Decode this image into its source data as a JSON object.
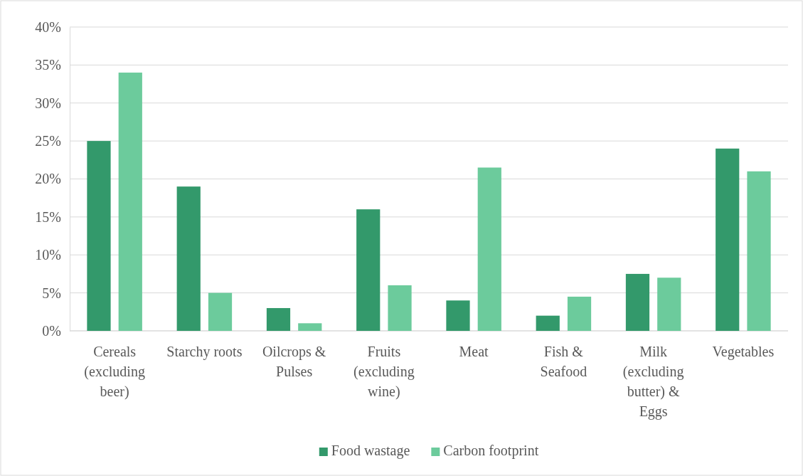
{
  "chart_data": {
    "type": "bar",
    "categories": [
      "Cereals (excluding beer)",
      "Starchy roots",
      "Oilcrops & Pulses",
      "Fruits (excluding wine)",
      "Meat",
      "Fish & Seafood",
      "Milk (excluding butter) & Eggs",
      "Vegetables"
    ],
    "series": [
      {
        "name": "Food wastage",
        "color": "#33996b",
        "values": [
          25,
          19,
          3,
          16,
          4,
          2,
          7.5,
          24
        ]
      },
      {
        "name": "Carbon footprint",
        "color": "#6ccb9c",
        "values": [
          34,
          5,
          1,
          6,
          21.5,
          4.5,
          7,
          21
        ]
      }
    ],
    "ylim": [
      0,
      40
    ],
    "yticks": [
      {
        "value": 0,
        "label": "0%"
      },
      {
        "value": 5,
        "label": "5%"
      },
      {
        "value": 10,
        "label": "10%"
      },
      {
        "value": 15,
        "label": "15%"
      },
      {
        "value": 20,
        "label": "20%"
      },
      {
        "value": 25,
        "label": "25%"
      },
      {
        "value": 30,
        "label": "30%"
      },
      {
        "value": 35,
        "label": "35%"
      },
      {
        "value": 40,
        "label": "40%"
      }
    ],
    "grid": "y",
    "legend": "bottom"
  }
}
